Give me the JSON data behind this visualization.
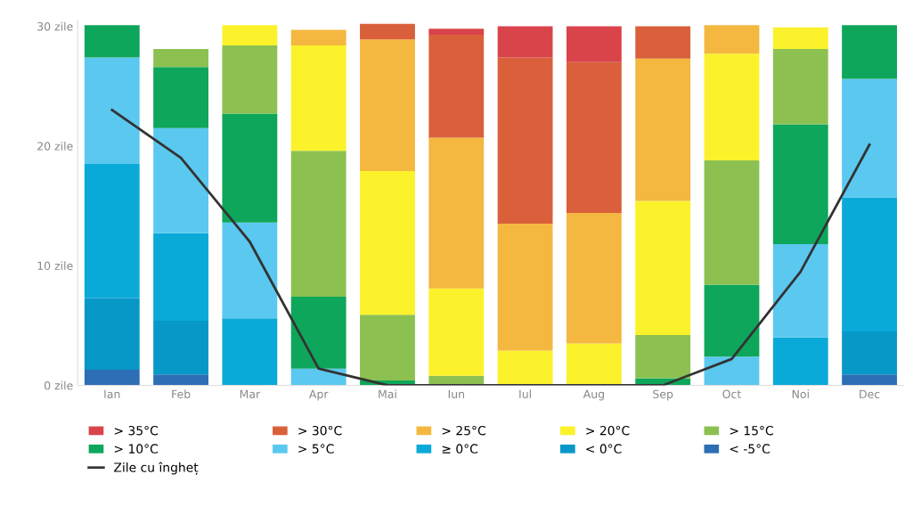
{
  "chart_data": {
    "type": "bar",
    "stacked": true,
    "categories": [
      "Ian",
      "Feb",
      "Mar",
      "Apr",
      "Mai",
      "Iun",
      "Iul",
      "Aug",
      "Sep",
      "Oct",
      "Noi",
      "Dec"
    ],
    "series": [
      {
        "name": "< -5°C",
        "color": "#2d6eb5",
        "values": [
          1.3,
          0.9,
          null,
          null,
          null,
          null,
          null,
          null,
          null,
          null,
          null,
          0.9
        ]
      },
      {
        "name": "< 0°C",
        "color": "#0798c8",
        "values": [
          6.0,
          4.5,
          null,
          null,
          null,
          null,
          null,
          null,
          null,
          null,
          null,
          3.6
        ]
      },
      {
        "name": "≥ 0°C",
        "color": "#0aaad8",
        "values": [
          11.2,
          7.3,
          5.6,
          null,
          null,
          null,
          null,
          null,
          null,
          null,
          4.0,
          11.2
        ]
      },
      {
        "name": "> 5°C",
        "color": "#5bc8f0",
        "values": [
          8.9,
          8.8,
          8.0,
          1.4,
          null,
          null,
          null,
          null,
          null,
          2.4,
          7.8,
          9.9
        ]
      },
      {
        "name": "> 10°C",
        "color": "#0ea65a",
        "values": [
          2.7,
          5.1,
          9.1,
          6.0,
          0.4,
          null,
          null,
          null,
          0.6,
          6.0,
          10.0,
          4.5
        ]
      },
      {
        "name": "> 15°C",
        "color": "#8cc152",
        "values": [
          null,
          1.5,
          5.7,
          12.2,
          5.5,
          0.8,
          null,
          null,
          3.6,
          10.4,
          6.3,
          null
        ]
      },
      {
        "name": "> 20°C",
        "color": "#fbf22b",
        "values": [
          null,
          null,
          1.7,
          8.8,
          12.0,
          7.3,
          2.9,
          3.5,
          11.2,
          8.9,
          1.8,
          null
        ]
      },
      {
        "name": "> 25°C",
        "color": "#f4b73f",
        "values": [
          null,
          null,
          null,
          1.3,
          11.0,
          12.6,
          10.6,
          10.9,
          11.9,
          2.4,
          null,
          null
        ]
      },
      {
        "name": "> 30°C",
        "color": "#d9603b",
        "values": [
          null,
          null,
          null,
          null,
          1.3,
          8.6,
          13.9,
          12.6,
          2.7,
          null,
          null,
          null
        ]
      },
      {
        "name": "> 35°C",
        "color": "#d9434a",
        "values": [
          null,
          null,
          null,
          null,
          null,
          0.5,
          2.6,
          3.0,
          null,
          null,
          null,
          null
        ]
      },
      {
        "name": "Zile cu îngheț",
        "type": "line",
        "color": "#333333",
        "values": [
          23.0,
          19.0,
          12.0,
          1.4,
          0,
          0,
          0,
          0,
          0,
          2.2,
          9.5,
          20.1
        ]
      }
    ],
    "ylim": [
      0,
      30.5
    ],
    "yticks": [
      {
        "value": 0,
        "label": "0 zile"
      },
      {
        "value": 10,
        "label": "10 zile"
      },
      {
        "value": 20,
        "label": "20 zile"
      },
      {
        "value": 30,
        "label": "30 zile"
      }
    ],
    "legend": "bottom",
    "marker": "none",
    "line_style": "solid",
    "grid": false
  }
}
